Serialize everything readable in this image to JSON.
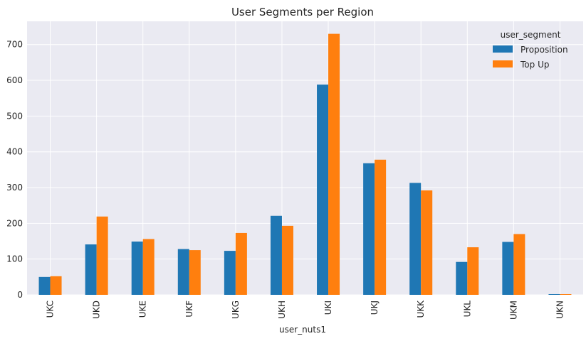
{
  "chart_data": {
    "type": "bar",
    "title": "User Segments per Region",
    "xlabel": "user_nuts1",
    "ylabel": "",
    "categories": [
      "UKC",
      "UKD",
      "UKE",
      "UKF",
      "UKG",
      "UKH",
      "UKI",
      "UKJ",
      "UKK",
      "UKL",
      "UKM",
      "UKN"
    ],
    "series": [
      {
        "name": "Proposition",
        "color": "#1f77b4",
        "values": [
          50,
          141,
          149,
          128,
          123,
          221,
          588,
          368,
          313,
          92,
          148,
          2
        ]
      },
      {
        "name": "Top Up",
        "color": "#ff7f0e",
        "values": [
          52,
          219,
          156,
          125,
          173,
          193,
          730,
          378,
          292,
          133,
          170,
          2
        ]
      }
    ],
    "ylim": [
      0,
      765
    ],
    "yticks": [
      0,
      100,
      200,
      300,
      400,
      500,
      600,
      700
    ],
    "grid": true,
    "legend": {
      "title": "user_segment",
      "position": "top-right"
    }
  }
}
